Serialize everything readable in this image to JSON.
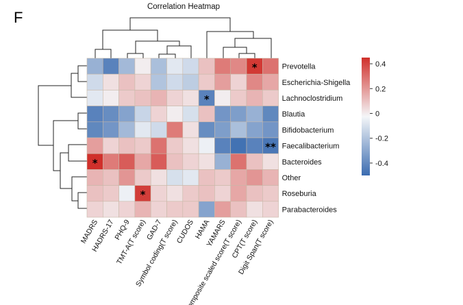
{
  "panel_label": "F",
  "chart_data": {
    "type": "heatmap",
    "title": "Correlation Heatmap",
    "rows": [
      "Prevotella",
      "Escherichia-Shigella",
      "Lachnoclostridium",
      "Blautia",
      "Bifidobacterium",
      "Faecalibacterium",
      "Bacteroides",
      "Other",
      "Roseburia",
      "Parabacteroides"
    ],
    "columns": [
      "MADRS",
      "HADRS-17",
      "PHQ-9",
      "TMT-A(T score)",
      "GAD-7",
      "Symbol coding(T score)",
      "CUDOS",
      "HAMA",
      "YAMARS",
      "Composite scaled score(T score)",
      "CPT(T score)",
      "Digit Span(T score)"
    ],
    "values": [
      [
        -0.25,
        -0.42,
        -0.22,
        0.02,
        -0.2,
        -0.05,
        -0.1,
        0.12,
        0.28,
        0.25,
        0.43,
        0.3
      ],
      [
        -0.1,
        0.05,
        0.12,
        0.08,
        -0.18,
        -0.1,
        -0.15,
        0.1,
        0.2,
        0.08,
        0.25,
        0.18
      ],
      [
        -0.05,
        0.02,
        0.1,
        0.12,
        0.15,
        0.08,
        0.05,
        -0.42,
        0.02,
        0.1,
        0.15,
        0.1
      ],
      [
        -0.42,
        -0.38,
        -0.3,
        -0.12,
        0.08,
        0.02,
        -0.08,
        0.12,
        -0.35,
        -0.32,
        -0.25,
        -0.4
      ],
      [
        -0.4,
        -0.35,
        -0.22,
        -0.05,
        -0.1,
        0.28,
        0.05,
        -0.38,
        -0.32,
        -0.2,
        -0.3,
        -0.35
      ],
      [
        0.2,
        0.08,
        0.12,
        0.1,
        0.3,
        0.1,
        0.05,
        -0.02,
        -0.42,
        -0.48,
        -0.42,
        -0.46
      ],
      [
        0.45,
        0.28,
        0.35,
        0.18,
        0.35,
        0.12,
        0.08,
        0.05,
        -0.25,
        0.3,
        0.12,
        0.05
      ],
      [
        0.15,
        0.12,
        0.22,
        0.1,
        0.05,
        -0.08,
        -0.05,
        0.12,
        0.1,
        0.18,
        0.22,
        0.15
      ],
      [
        0.12,
        0.1,
        -0.02,
        0.42,
        0.08,
        0.05,
        0.1,
        0.12,
        0.08,
        0.18,
        0.12,
        0.1
      ],
      [
        0.08,
        0.05,
        0.08,
        0.15,
        0.08,
        0.1,
        0.1,
        -0.3,
        0.2,
        0.12,
        0.05,
        0.08
      ]
    ],
    "significance": [
      {
        "row": "Prevotella",
        "column": "CPT(T score)",
        "label": "*"
      },
      {
        "row": "Lachnoclostridium",
        "column": "HAMA",
        "label": "*"
      },
      {
        "row": "Faecalibacterium",
        "column": "Digit Span(T score)",
        "label": "**"
      },
      {
        "row": "Bacteroides",
        "column": "MADRS",
        "label": "*"
      },
      {
        "row": "Roseburia",
        "column": "TMT-A(T score)",
        "label": "*"
      }
    ],
    "color_scale": {
      "min": -0.5,
      "mid": 0,
      "max": 0.45,
      "low_color": "#3b6cb0",
      "mid_color": "#f4f6f8",
      "high_color": "#d0302b",
      "ticks": [
        "0.4",
        "0.2",
        "0",
        "-0.2",
        "-0.4"
      ]
    },
    "legend_position": "right",
    "row_dendrogram": "left",
    "column_dendrogram": "top"
  }
}
